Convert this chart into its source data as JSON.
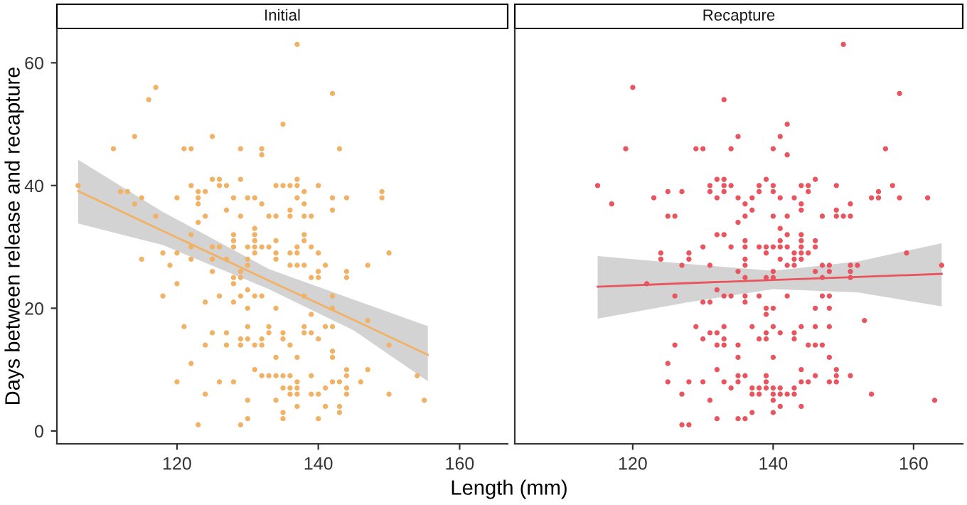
{
  "chart_data": [
    {
      "type": "scatter",
      "title": "Initial",
      "xlabel": "Length (mm)",
      "ylabel": "Days between release and recapture",
      "xlim": [
        103,
        166.8
      ],
      "xticks": [
        120,
        140,
        160
      ],
      "ylim": [
        -2.1,
        65.6
      ],
      "yticks": [
        0,
        20,
        40,
        60
      ],
      "grid": false,
      "series": [
        {
          "marker": "circle",
          "color": "#f2b266",
          "x": [
            117,
            116,
            114,
            111,
            121,
            122,
            125,
            129,
            132,
            132,
            135,
            106,
            112,
            113,
            114,
            115,
            117,
            120,
            122,
            123,
            123,
            123,
            124,
            123,
            124,
            125,
            126,
            126,
            127,
            127,
            128,
            129,
            129,
            130,
            131,
            132,
            133,
            134,
            135,
            134,
            122,
            122,
            122,
            120,
            118,
            115,
            119,
            120,
            118,
            125,
            126,
            125,
            125,
            127,
            128,
            128,
            128,
            131,
            131,
            131,
            131,
            131,
            130,
            130,
            130,
            132,
            133,
            134,
            134,
            134,
            129,
            129,
            128,
            128,
            130,
            126,
            128,
            129,
            131,
            132,
            130,
            134,
            124,
            121,
            125,
            127,
            124,
            127,
            129,
            129,
            130,
            130,
            131,
            132,
            132,
            133,
            133,
            135,
            135,
            134,
            122,
            120,
            126,
            128,
            124,
            131,
            132,
            133,
            134,
            135,
            130,
            134,
            135,
            123,
            129,
            130,
            135,
            135,
            137,
            142,
            143,
            137,
            136,
            137,
            138,
            140,
            137,
            136,
            136,
            138,
            138,
            139,
            142,
            142,
            144,
            149,
            149,
            138,
            138,
            137,
            136,
            137,
            139,
            140,
            136,
            137,
            138,
            141,
            147,
            150,
            140,
            139,
            140,
            144,
            144,
            138,
            142,
            142,
            139,
            141,
            142,
            138,
            138,
            139,
            140,
            136,
            147,
            150,
            142,
            142,
            137,
            136,
            137,
            136,
            137,
            137,
            136,
            139,
            139,
            140,
            141,
            142,
            143,
            144,
            144,
            144,
            144,
            146,
            147,
            150,
            154,
            155,
            137,
            141,
            143,
            143,
            140
          ],
          "values": [
            56,
            54,
            48,
            46,
            46,
            46,
            48,
            46,
            46,
            45,
            50,
            40,
            39,
            39,
            37,
            38,
            35,
            38,
            40,
            39,
            38,
            37,
            39,
            34,
            35,
            41,
            41,
            40,
            40,
            36,
            38,
            41,
            35,
            38,
            38,
            37,
            35,
            40,
            40,
            35,
            32,
            30,
            28,
            29,
            29,
            28,
            27,
            24,
            22,
            30,
            30,
            28,
            26,
            28,
            32,
            31,
            30,
            33,
            32,
            31,
            30,
            29,
            30,
            28,
            27,
            30,
            30,
            31,
            29,
            28,
            26,
            25,
            25,
            24,
            23,
            22,
            21,
            22,
            22,
            22,
            20,
            20,
            21,
            17,
            16,
            16,
            14,
            14,
            15,
            14,
            17,
            15,
            14,
            15,
            14,
            17,
            16,
            16,
            15,
            12,
            11,
            8,
            8,
            8,
            6,
            10,
            9,
            9,
            9,
            9,
            5,
            5,
            7,
            1,
            1,
            2,
            3,
            2,
            63,
            55,
            46,
            41,
            40,
            40,
            39,
            40,
            38,
            36,
            35,
            37,
            35,
            35,
            38,
            36,
            38,
            39,
            38,
            32,
            31,
            30,
            29,
            29,
            30,
            29,
            27,
            27,
            27,
            27,
            27,
            29,
            26,
            25,
            25,
            26,
            25,
            22,
            22,
            20,
            19,
            17,
            17,
            17,
            16,
            16,
            15,
            14,
            18,
            14,
            13,
            12,
            12,
            9,
            8,
            7,
            7,
            6,
            6,
            9,
            6,
            6,
            7,
            8,
            8,
            10,
            9,
            7,
            6,
            8,
            10,
            6,
            9,
            5,
            4,
            4,
            4,
            3,
            2
          ]
        },
        {
          "type": "line",
          "marker": "none",
          "color": "#f2b266",
          "x": [
            106,
            118,
            133,
            145,
            155.5
          ],
          "values": [
            39.1,
            32.6,
            24.5,
            18.1,
            12.4
          ],
          "lower": [
            33.8,
            30.3,
            23.1,
            16.4,
            8.1
          ],
          "upper": [
            44.2,
            35.7,
            26.4,
            21.4,
            17.1
          ]
        }
      ]
    },
    {
      "type": "scatter",
      "title": "Recapture",
      "xlim": [
        103.2,
        167
      ],
      "xticks": [
        120,
        140,
        160
      ],
      "ylim": [
        -2.1,
        65.6
      ],
      "yticks": [
        0,
        20,
        40,
        60
      ],
      "grid": false,
      "tick_labels": "x",
      "series": [
        {
          "marker": "circle",
          "color": "#e8555f",
          "x": [
            120,
            133,
            119,
            129,
            130,
            134,
            132,
            133,
            131,
            133,
            134,
            115,
            131,
            133,
            125,
            127,
            123,
            132,
            117,
            125,
            126,
            132,
            133,
            130,
            134,
            124,
            124,
            128,
            128,
            127,
            131,
            122,
            132,
            126,
            133,
            134,
            130,
            131,
            129,
            133,
            131,
            132,
            130,
            133,
            126,
            132,
            133,
            125,
            132,
            125,
            128,
            130,
            133,
            134,
            127,
            131,
            132,
            127,
            128,
            150,
            158,
            142,
            141,
            135,
            140,
            142,
            156,
            139,
            138,
            140,
            144,
            145,
            146,
            149,
            157,
            138,
            140,
            145,
            155,
            135,
            137,
            141,
            143,
            154,
            155,
            158,
            162,
            136,
            144,
            151,
            137,
            144,
            149,
            136,
            140,
            142,
            147,
            149,
            150,
            151,
            135,
            141,
            142,
            144,
            136,
            141,
            144,
            146,
            136,
            138,
            139,
            140,
            141,
            142,
            144,
            146,
            139,
            143,
            144,
            145,
            159,
            136,
            141,
            143,
            144,
            136,
            142,
            143,
            147,
            148,
            151,
            152,
            164,
            135,
            140,
            146,
            148,
            151,
            136,
            139,
            140,
            147,
            151,
            136,
            138,
            142,
            147,
            148,
            136,
            139,
            140,
            146,
            148,
            139,
            153,
            137,
            140,
            144,
            146,
            148,
            139,
            141,
            143,
            138,
            139,
            143,
            135,
            145,
            146,
            147,
            135,
            140,
            148,
            144,
            149,
            135,
            136,
            139,
            146,
            149,
            151,
            135,
            139,
            144,
            145,
            148,
            149,
            137,
            138,
            139,
            140,
            141,
            143,
            137,
            138,
            140,
            141,
            142,
            143,
            154,
            140,
            163,
            141,
            144,
            137,
            140,
            135,
            136
          ],
          "values": [
            56,
            54,
            46,
            46,
            46,
            46,
            41,
            41,
            40,
            40,
            40,
            40,
            39,
            39,
            39,
            39,
            38,
            38,
            37,
            35,
            35,
            32,
            32,
            30,
            30,
            29,
            28,
            29,
            28,
            27,
            27,
            24,
            23,
            22,
            22,
            22,
            21,
            21,
            17,
            17,
            16,
            16,
            15,
            15,
            14,
            14,
            14,
            11,
            10,
            8,
            8,
            8,
            8,
            7,
            6,
            5,
            2,
            1,
            1,
            63,
            55,
            50,
            48,
            48,
            46,
            45,
            46,
            41,
            40,
            40,
            40,
            40,
            41,
            40,
            40,
            39,
            39,
            39,
            39,
            38,
            38,
            38,
            38,
            38,
            38,
            38,
            38,
            37,
            37,
            37,
            36,
            36,
            36,
            35,
            35,
            35,
            35,
            35,
            35,
            35,
            34,
            33,
            32,
            32,
            31,
            31,
            31,
            31,
            30,
            30,
            30,
            30,
            30,
            30,
            30,
            30,
            29,
            29,
            29,
            29,
            29,
            28,
            28,
            28,
            28,
            27,
            27,
            27,
            27,
            27,
            27,
            27,
            27,
            26,
            26,
            26,
            26,
            26,
            25,
            25,
            25,
            25,
            25,
            22,
            22,
            22,
            22,
            22,
            21,
            20,
            20,
            20,
            20,
            19,
            18,
            17,
            17,
            17,
            17,
            17,
            16,
            16,
            16,
            15,
            15,
            15,
            14,
            14,
            14,
            14,
            12,
            12,
            12,
            10,
            10,
            9,
            9,
            9,
            9,
            9,
            9,
            8,
            8,
            8,
            8,
            8,
            8,
            7,
            7,
            7,
            7,
            7,
            7,
            6,
            6,
            6,
            6,
            6,
            6,
            6,
            5,
            5,
            4,
            4,
            3,
            3,
            2,
            2
          ]
        },
        {
          "type": "line",
          "color": "#e8555f",
          "x": [
            115,
            128,
            140,
            152,
            164
          ],
          "values": [
            23.5,
            24.1,
            24.6,
            25.1,
            25.6
          ],
          "lower": [
            18.3,
            21.0,
            23.1,
            22.6,
            20.3
          ],
          "upper": [
            28.5,
            27.2,
            26.1,
            27.6,
            30.6
          ]
        }
      ]
    }
  ]
}
